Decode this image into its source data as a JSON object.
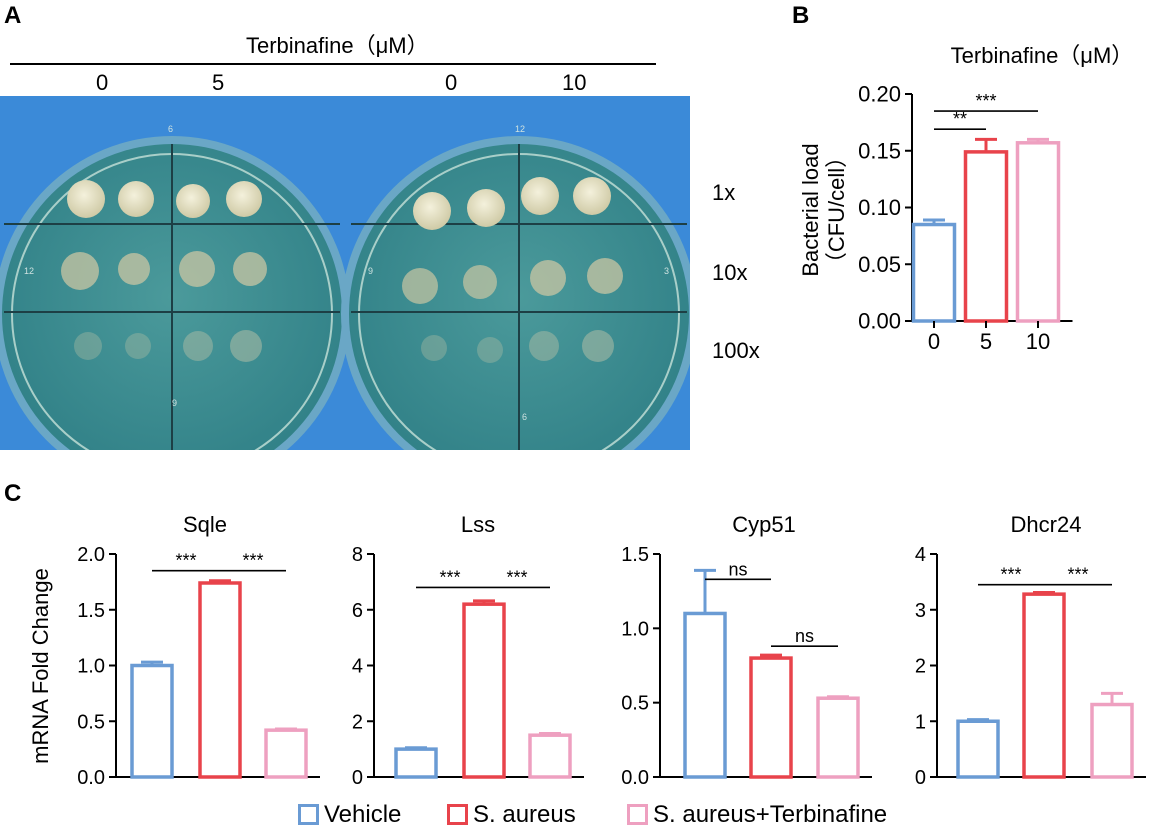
{
  "panel_a": {
    "letter": "A",
    "header": "Terbinafine（μM）",
    "doses_left": [
      "0",
      "5"
    ],
    "doses_right": [
      "0",
      "10"
    ],
    "dilutions": [
      "1x",
      "10x",
      "100x"
    ],
    "plate_marks_left": [
      "6",
      "12",
      "9"
    ],
    "plate_marks_right": [
      "12",
      "9",
      "3",
      "6"
    ],
    "colors": {
      "background": "#3b8ad8",
      "agar": "#3f8f92",
      "colony": "#e8e4c8"
    }
  },
  "panel_b": {
    "letter": "B"
  },
  "panel_c": {
    "letter": "C"
  },
  "legend": {
    "items": [
      {
        "label": "Vehicle",
        "color": "#6a9bd4"
      },
      {
        "label": "S. aureus",
        "color": "#e8434b"
      },
      {
        "label": "S. aureus+Terbinafine",
        "color": "#eea0c0"
      }
    ]
  },
  "chart_data": [
    {
      "id": "B",
      "type": "bar",
      "title": "Terbinafine（μM）",
      "xlabel": "",
      "ylabel": [
        "Bacterial load",
        "（CFU/cell）"
      ],
      "categories": [
        "0",
        "5",
        "10"
      ],
      "values": [
        0.085,
        0.149,
        0.157
      ],
      "errors": [
        0.004,
        0.011,
        0.003
      ],
      "colors": [
        "#6a9bd4",
        "#e8434b",
        "#eea0c0"
      ],
      "ylim": [
        0,
        0.2
      ],
      "yticks": [
        "0.00",
        "0.05",
        "0.10",
        "0.15",
        "0.20"
      ],
      "annotations": [
        {
          "from": 0,
          "to": 2,
          "y": 0.185,
          "label": "***"
        },
        {
          "from": 0,
          "to": 1,
          "y": 0.169,
          "label": "**"
        }
      ]
    },
    {
      "id": "C1",
      "type": "bar",
      "title": "Sqle",
      "ylabel": "mRNA Fold Change",
      "categories": [
        "Vehicle",
        "S. aureus",
        "S. aureus+Terbinafine"
      ],
      "values": [
        1.0,
        1.74,
        0.42
      ],
      "errors": [
        0.03,
        0.02,
        0.01
      ],
      "colors": [
        "#6a9bd4",
        "#e8434b",
        "#eea0c0"
      ],
      "ylim": [
        0,
        2.0
      ],
      "yticks": [
        "0.0",
        "0.5",
        "1.0",
        "1.5",
        "2.0"
      ],
      "annotations": [
        {
          "from": 0,
          "to": 1,
          "y": 1.85,
          "label": "***"
        },
        {
          "from": 1,
          "to": 2,
          "y": 1.85,
          "label": "***"
        }
      ]
    },
    {
      "id": "C2",
      "type": "bar",
      "title": "Lss",
      "ylabel": "",
      "categories": [
        "Vehicle",
        "S. aureus",
        "S. aureus+Terbinafine"
      ],
      "values": [
        1.0,
        6.2,
        1.5
      ],
      "errors": [
        0.05,
        0.12,
        0.06
      ],
      "colors": [
        "#6a9bd4",
        "#e8434b",
        "#eea0c0"
      ],
      "ylim": [
        0,
        8
      ],
      "yticks": [
        "0",
        "2",
        "4",
        "6",
        "8"
      ],
      "annotations": [
        {
          "from": 0,
          "to": 1,
          "y": 6.8,
          "label": "***"
        },
        {
          "from": 1,
          "to": 2,
          "y": 6.8,
          "label": "***"
        }
      ]
    },
    {
      "id": "C3",
      "type": "bar",
      "title": "Cyp51",
      "ylabel": "",
      "categories": [
        "Vehicle",
        "S. aureus",
        "S. aureus+Terbinafine"
      ],
      "values": [
        1.1,
        0.8,
        0.53
      ],
      "errors": [
        0.29,
        0.02,
        0.01
      ],
      "colors": [
        "#6a9bd4",
        "#e8434b",
        "#eea0c0"
      ],
      "ylim": [
        0,
        1.5
      ],
      "yticks": [
        "0.0",
        "0.5",
        "1.0",
        "1.5"
      ],
      "annotations": [
        {
          "from": 0,
          "to": 1,
          "y": 1.33,
          "label": "ns"
        },
        {
          "from": 1,
          "to": 2,
          "y": 0.88,
          "label": "ns"
        }
      ]
    },
    {
      "id": "C4",
      "type": "bar",
      "title": "Dhcr24",
      "ylabel": "",
      "categories": [
        "Vehicle",
        "S. aureus",
        "S. aureus+Terbinafine"
      ],
      "values": [
        1.0,
        3.28,
        1.3
      ],
      "errors": [
        0.03,
        0.03,
        0.2
      ],
      "colors": [
        "#6a9bd4",
        "#e8434b",
        "#eea0c0"
      ],
      "ylim": [
        0,
        4
      ],
      "yticks": [
        "0",
        "1",
        "2",
        "3",
        "4"
      ],
      "annotations": [
        {
          "from": 0,
          "to": 1,
          "y": 3.45,
          "label": "***"
        },
        {
          "from": 1,
          "to": 2,
          "y": 3.45,
          "label": "***"
        }
      ]
    }
  ]
}
